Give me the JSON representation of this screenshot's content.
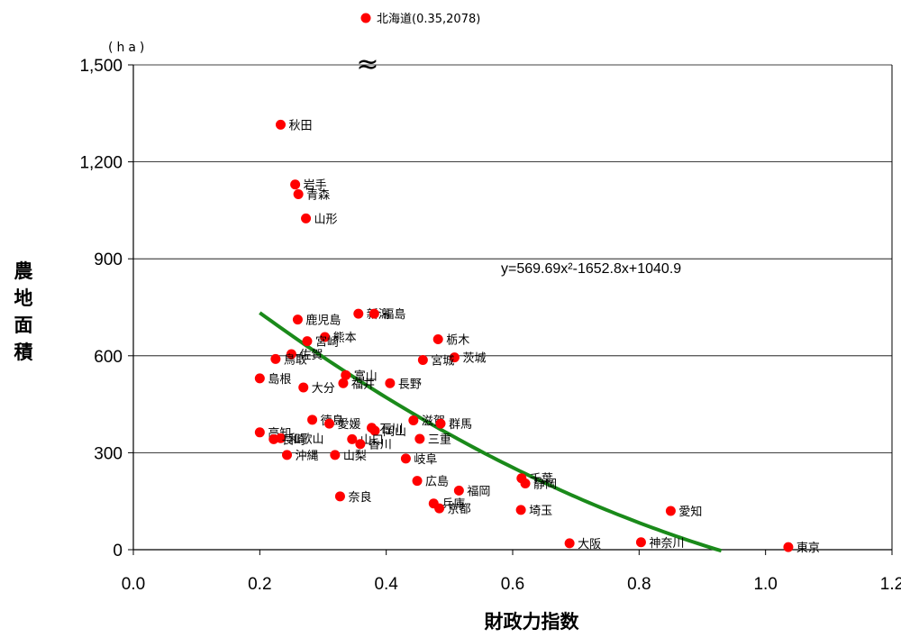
{
  "chart_data": {
    "type": "scatter",
    "xlabel": "財政力指数",
    "ylabel": "農地面積",
    "y_unit": "(ha)",
    "xlim": [
      0.0,
      1.2
    ],
    "ylim": [
      0,
      1500
    ],
    "x_ticks": [
      "0.0",
      "0.2",
      "0.4",
      "0.6",
      "0.8",
      "1.0",
      "1.2"
    ],
    "y_ticks": [
      "0",
      "300",
      "600",
      "900",
      "1,200",
      "1,500"
    ],
    "grid": "horizontal",
    "marker_color": "#ff0000",
    "trendline": {
      "equation": "y=569.69x²-1652.8x+1040.9",
      "coefficients": [
        569.69,
        -1652.8,
        1040.9
      ],
      "x_range": [
        0.2,
        0.93
      ],
      "color": "#1a8a1a"
    },
    "axis_break_marker": "≈",
    "outlier": {
      "label": "北海道(0.35,2078)",
      "x": 0.35,
      "y": 2078
    },
    "points": [
      {
        "label": "秋田",
        "x": 0.233,
        "y": 1315
      },
      {
        "label": "岩手",
        "x": 0.256,
        "y": 1130
      },
      {
        "label": "青森",
        "x": 0.261,
        "y": 1100
      },
      {
        "label": "山形",
        "x": 0.273,
        "y": 1025
      },
      {
        "label": "鹿児島",
        "x": 0.26,
        "y": 712
      },
      {
        "label": "新潟",
        "x": 0.356,
        "y": 730
      },
      {
        "label": "福島",
        "x": 0.381,
        "y": 730
      },
      {
        "label": "熊本",
        "x": 0.303,
        "y": 658
      },
      {
        "label": "栃木",
        "x": 0.482,
        "y": 651
      },
      {
        "label": "宮崎",
        "x": 0.275,
        "y": 645
      },
      {
        "label": "佐賀",
        "x": 0.25,
        "y": 605
      },
      {
        "label": "鳥取",
        "x": 0.225,
        "y": 590
      },
      {
        "label": "茨城",
        "x": 0.508,
        "y": 595
      },
      {
        "label": "宮城",
        "x": 0.458,
        "y": 587
      },
      {
        "label": "富山",
        "x": 0.336,
        "y": 540
      },
      {
        "label": "島根",
        "x": 0.2,
        "y": 530
      },
      {
        "label": "福井",
        "x": 0.332,
        "y": 515
      },
      {
        "label": "長野",
        "x": 0.406,
        "y": 515
      },
      {
        "label": "大分",
        "x": 0.269,
        "y": 502
      },
      {
        "label": "徳島",
        "x": 0.283,
        "y": 402
      },
      {
        "label": "滋賀",
        "x": 0.443,
        "y": 400
      },
      {
        "label": "愛媛",
        "x": 0.31,
        "y": 390
      },
      {
        "label": "群馬",
        "x": 0.486,
        "y": 390
      },
      {
        "label": "石川",
        "x": 0.377,
        "y": 377
      },
      {
        "label": "岡山",
        "x": 0.382,
        "y": 368
      },
      {
        "label": "高知",
        "x": 0.2,
        "y": 363
      },
      {
        "label": "和歌山",
        "x": 0.233,
        "y": 345
      },
      {
        "label": "山口",
        "x": 0.346,
        "y": 342
      },
      {
        "label": "三重",
        "x": 0.453,
        "y": 343
      },
      {
        "label": "長崎",
        "x": 0.222,
        "y": 342
      },
      {
        "label": "香川",
        "x": 0.359,
        "y": 327
      },
      {
        "label": "沖縄",
        "x": 0.243,
        "y": 293
      },
      {
        "label": "山梨",
        "x": 0.319,
        "y": 293
      },
      {
        "label": "岐阜",
        "x": 0.431,
        "y": 282
      },
      {
        "label": "広島",
        "x": 0.449,
        "y": 213
      },
      {
        "label": "福岡",
        "x": 0.515,
        "y": 183
      },
      {
        "label": "千葉",
        "x": 0.614,
        "y": 221
      },
      {
        "label": "静岡",
        "x": 0.62,
        "y": 205
      },
      {
        "label": "奈良",
        "x": 0.327,
        "y": 165
      },
      {
        "label": "兵庫",
        "x": 0.475,
        "y": 143
      },
      {
        "label": "京都",
        "x": 0.484,
        "y": 128
      },
      {
        "label": "埼玉",
        "x": 0.613,
        "y": 123
      },
      {
        "label": "愛知",
        "x": 0.85,
        "y": 120
      },
      {
        "label": "大阪",
        "x": 0.69,
        "y": 20
      },
      {
        "label": "神奈川",
        "x": 0.803,
        "y": 23
      },
      {
        "label": "東京",
        "x": 1.036,
        "y": 8
      }
    ]
  }
}
